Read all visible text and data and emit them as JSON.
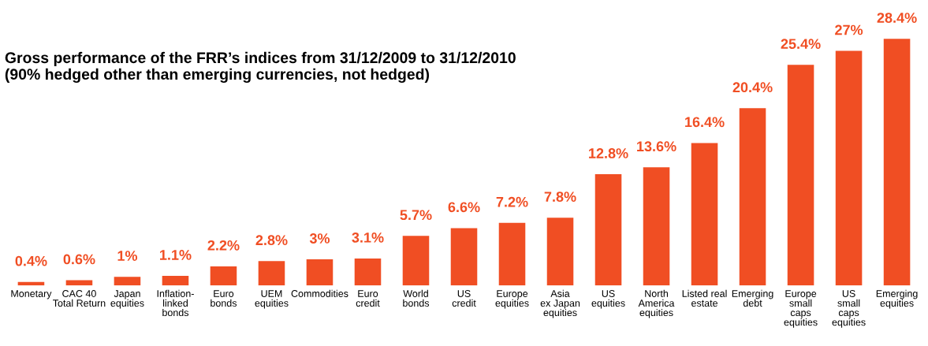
{
  "chart_data": {
    "type": "bar",
    "title": "Gross performance of the FRR’s indices from 31/12/2009 to 31/12/2010\n(90% hedged other than emerging currencies, not hedged)",
    "categories": [
      "Monetary",
      "CAC 40\nTotal Return",
      "Japan\nequities",
      "Inflation-\nlinked\nbonds",
      "Euro\nbonds",
      "UEM\nequities",
      "Commodities",
      "Euro\ncredit",
      "World\nbonds",
      "US\ncredit",
      "Europe\nequities",
      "Asia\nex Japan\nequities",
      "US\nequities",
      "North\nAmerica\nequities",
      "Listed real\nestate",
      "Emerging\ndebt",
      "Europe\nsmall\ncaps\nequities",
      "US\nsmall\ncaps\nequities",
      "Emerging\nequities"
    ],
    "values": [
      0.4,
      0.6,
      1,
      1.1,
      2.2,
      2.8,
      3,
      3.1,
      5.7,
      6.6,
      7.2,
      7.8,
      12.8,
      13.6,
      16.4,
      20.4,
      25.4,
      27,
      28.4
    ],
    "value_labels": [
      "0.4%",
      "0.6%",
      "1%",
      "1.1%",
      "2.2%",
      "2.8%",
      "3%",
      "3.1%",
      "5.7%",
      "6.6%",
      "7.2%",
      "7.8%",
      "12.8%",
      "13.6%",
      "16.4%",
      "20.4%",
      "25.4%",
      "27%",
      "28.4%"
    ],
    "color": "#f04e23",
    "grid": false,
    "legend": false,
    "tick_labels": "x"
  }
}
